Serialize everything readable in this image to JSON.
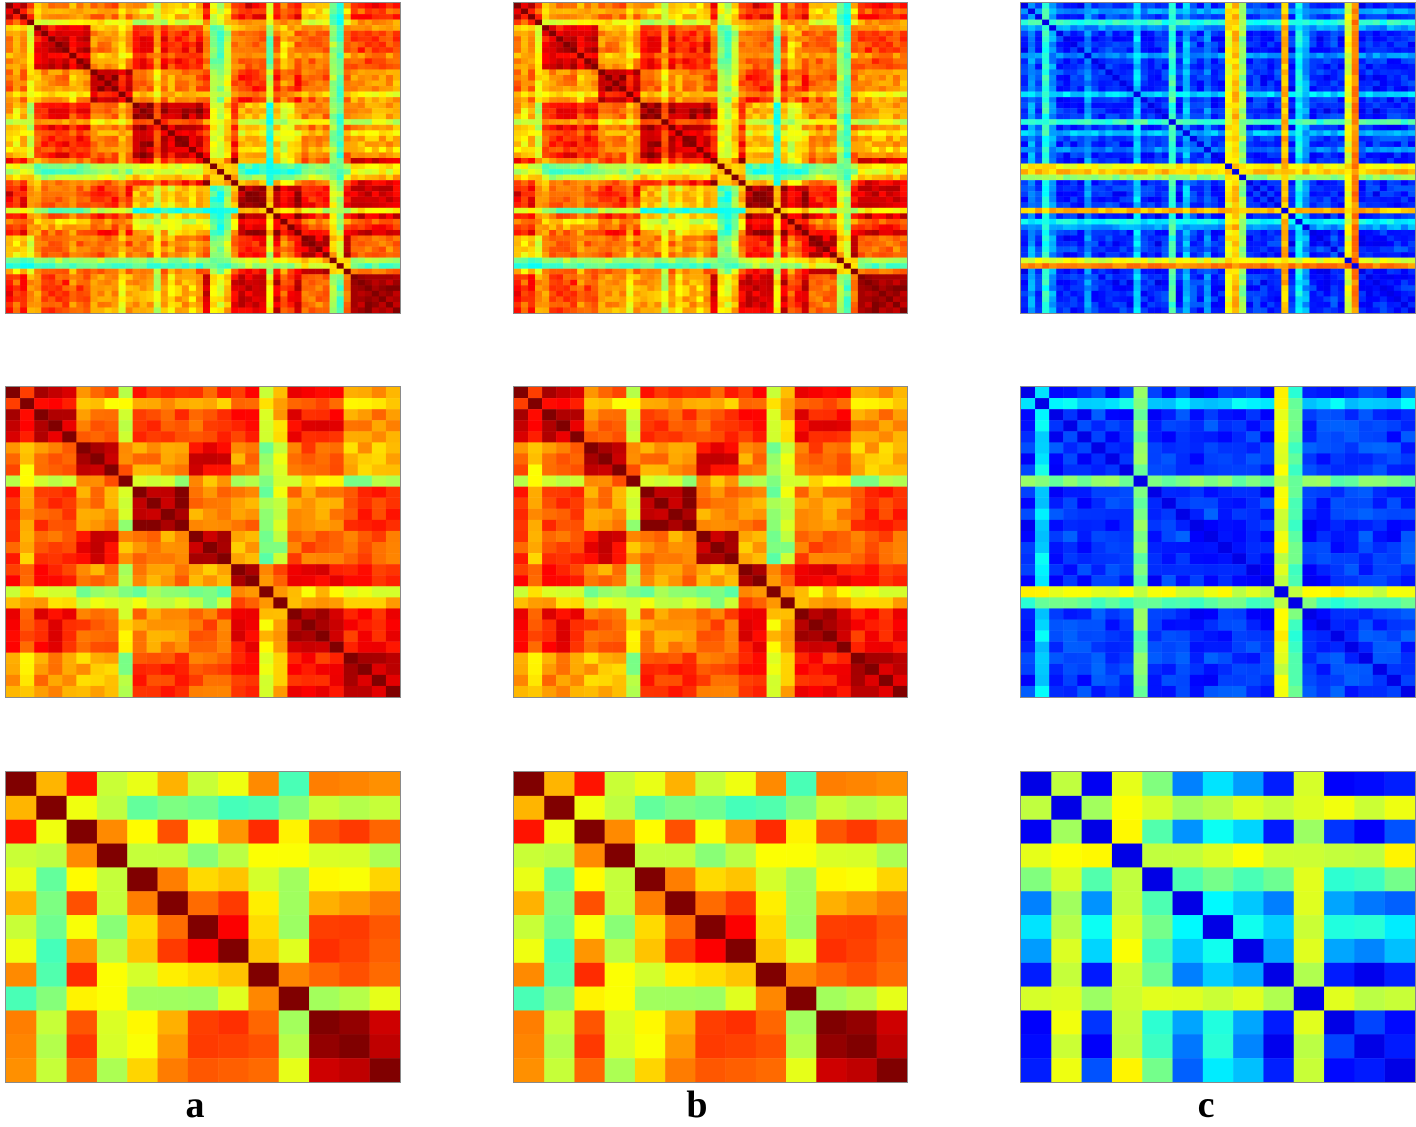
{
  "figure": {
    "column_labels": [
      "a",
      "b",
      "c"
    ]
  },
  "chart_data": [
    {
      "type": "heatmap",
      "row": 1,
      "column": "a",
      "colormap": "jet",
      "n": 56,
      "style": "similarity",
      "seed": 11,
      "group_sizes": [
        4,
        8,
        6,
        10,
        5,
        9,
        7,
        7
      ]
    },
    {
      "type": "heatmap",
      "row": 1,
      "column": "b",
      "colormap": "jet",
      "n": 56,
      "style": "similarity",
      "seed": 11,
      "group_sizes": [
        4,
        8,
        6,
        10,
        5,
        9,
        7,
        7
      ]
    },
    {
      "type": "heatmap",
      "row": 1,
      "column": "c",
      "colormap": "jet",
      "n": 56,
      "style": "difference",
      "seed": 11,
      "group_sizes": [
        4,
        8,
        6,
        10,
        5,
        9,
        7,
        7
      ]
    },
    {
      "type": "heatmap",
      "row": 2,
      "column": "a",
      "colormap": "jet",
      "n": 28,
      "style": "similarity",
      "seed": 23,
      "group_sizes": [
        5,
        4,
        4,
        3,
        4,
        4,
        4
      ]
    },
    {
      "type": "heatmap",
      "row": 2,
      "column": "b",
      "colormap": "jet",
      "n": 28,
      "style": "similarity",
      "seed": 23,
      "group_sizes": [
        5,
        4,
        4,
        3,
        4,
        4,
        4
      ]
    },
    {
      "type": "heatmap",
      "row": 2,
      "column": "c",
      "colormap": "jet",
      "n": 28,
      "style": "difference",
      "seed": 23,
      "group_sizes": [
        5,
        4,
        4,
        3,
        4,
        4,
        4
      ]
    },
    {
      "type": "heatmap",
      "row": 3,
      "column": "a",
      "colormap": "jet",
      "n": 13,
      "style": "similarity",
      "seed": 37,
      "group_sizes": [
        2,
        2,
        2,
        2,
        2,
        3
      ]
    },
    {
      "type": "heatmap",
      "row": 3,
      "column": "b",
      "colormap": "jet",
      "n": 13,
      "style": "similarity",
      "seed": 37,
      "group_sizes": [
        2,
        2,
        2,
        2,
        2,
        3
      ]
    },
    {
      "type": "heatmap",
      "row": 3,
      "column": "c",
      "colormap": "jet",
      "n": 13,
      "style": "difference",
      "seed": 37,
      "group_sizes": [
        2,
        2,
        2,
        2,
        2,
        3
      ]
    }
  ]
}
